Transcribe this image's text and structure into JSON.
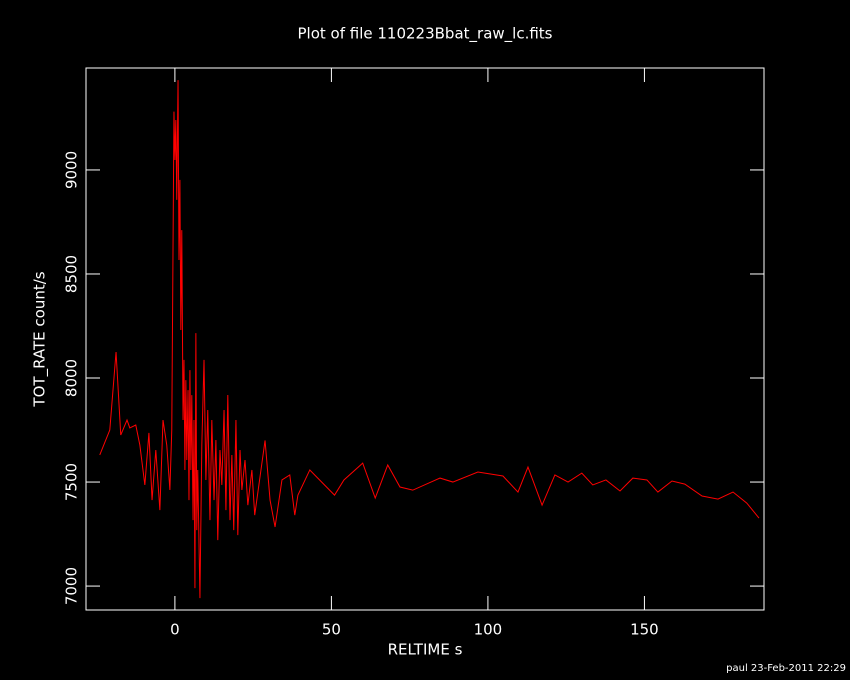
{
  "chart_data": {
    "type": "line",
    "title": "Plot of file 110223Bbat_raw_lc.fits",
    "x_label": "RELTIME  s",
    "y_label": "TOT_RATE  count/s",
    "footer": "paul 23-Feb-2011 22:29",
    "xlim": [
      -28.4,
      188.2
    ],
    "ylim": [
      6885,
      9490
    ],
    "xticks": [
      0,
      50,
      100,
      150
    ],
    "yticks": [
      7000,
      7500,
      8000,
      8500,
      9000
    ],
    "x": [
      -24,
      -20.8,
      -18.8,
      -17.3,
      -15.3,
      -14.4,
      -12.5,
      -11.2,
      -9.6,
      -8.3,
      -7.3,
      -6.1,
      -4.8,
      -3.8,
      -2.6,
      -1.6,
      -1,
      -0.3,
      0,
      0.3,
      0.6,
      1,
      1.3,
      1.6,
      1.9,
      2.2,
      2.6,
      2.9,
      3.2,
      3.5,
      3.8,
      4.2,
      4.5,
      4.8,
      5.1,
      5.4,
      5.8,
      6.1,
      6.4,
      6.7,
      7,
      7.3,
      8,
      8.6,
      9.3,
      9.9,
      10.5,
      11.2,
      11.8,
      12.5,
      13.1,
      13.7,
      14.4,
      15,
      15.7,
      16.3,
      16.9,
      17.6,
      18.2,
      18.8,
      19.5,
      20.1,
      20.8,
      21.4,
      22.4,
      23.3,
      24.6,
      25.5,
      28.8,
      30.4,
      32,
      34.2,
      36.7,
      38.3,
      39.3,
      43.1,
      51,
      54,
      60,
      64,
      68,
      71.9,
      76,
      84.7,
      88.8,
      96.8,
      104.8,
      109.6,
      112.8,
      117.3,
      121.4,
      125.6,
      130,
      133.5,
      137.7,
      142.2,
      146.3,
      150.8,
      154.3,
      158.8,
      162.9,
      168.4,
      173.5,
      178.3,
      182.7,
      186.6
    ],
    "series": [
      {
        "name": "TOT_RATE",
        "color": "#ff0000",
        "values": [
          7630,
          7750,
          8125,
          7726,
          7798,
          7760,
          7774,
          7678,
          7486,
          7736,
          7413,
          7654,
          7365,
          7798,
          7678,
          7462,
          7750,
          9280,
          9048,
          9240,
          8856,
          9432,
          8567,
          8952,
          8231,
          8711,
          7798,
          8087,
          7558,
          7990,
          7606,
          7942,
          7413,
          8038,
          7558,
          7918,
          7317,
          7798,
          6990,
          8216,
          7269,
          7558,
          6942,
          7678,
          8087,
          7510,
          7846,
          7317,
          7798,
          7413,
          7702,
          7221,
          7654,
          7486,
          7846,
          7365,
          7918,
          7317,
          7630,
          7269,
          7798,
          7245,
          7654,
          7462,
          7606,
          7389,
          7558,
          7341,
          7700,
          7413,
          7284,
          7510,
          7534,
          7341,
          7437,
          7558,
          7437,
          7510,
          7591,
          7423,
          7582,
          7476,
          7461,
          7519,
          7500,
          7548,
          7529,
          7452,
          7572,
          7389,
          7534,
          7500,
          7543,
          7486,
          7510,
          7457,
          7519,
          7510,
          7452,
          7505,
          7490,
          7433,
          7418,
          7452,
          7399,
          7327
        ]
      }
    ]
  }
}
